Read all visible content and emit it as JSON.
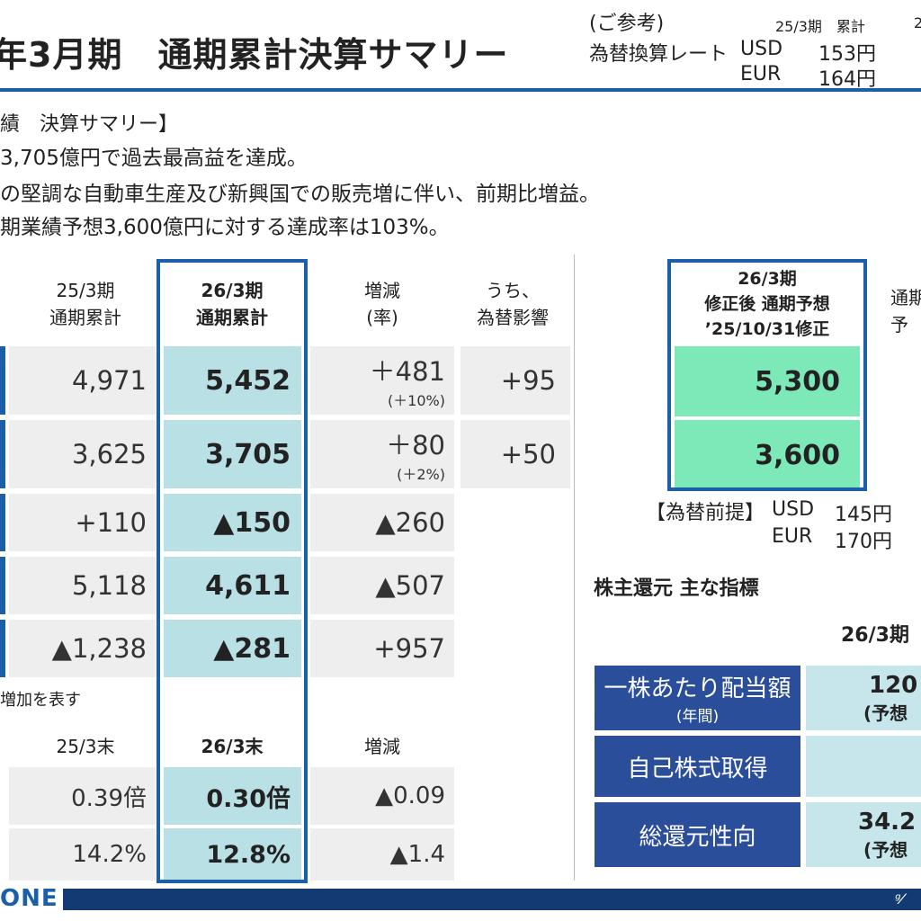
{
  "header": {
    "title": "年3月期　通期累計決算サマリー",
    "ref_label": "(ご参考)",
    "rate_label": "為替換算レート",
    "col_label": "25/3期　累計",
    "col_label_cut": "2",
    "usd": "USD",
    "usd_val": "153円",
    "eur": "EUR",
    "eur_val": "164円"
  },
  "highlights": {
    "heading": "績　決算サマリー】",
    "line1": "3,705億円で過去最高益を達成。",
    "line2": "の堅調な自動車生産及び新興国での販売増に伴い、前期比増益。",
    "line3": "期業績予想3,600億円に対する達成率は103%。"
  },
  "table": {
    "headers": {
      "prev": [
        "25/3期",
        "通期累計"
      ],
      "curr": [
        "26/3期",
        "通期累計"
      ],
      "diff": [
        "増減",
        "(率)"
      ],
      "fx": [
        "うち、",
        "為替影響"
      ]
    },
    "rows": [
      {
        "prev": "4,971",
        "curr": "5,452",
        "diff": "＋481",
        "rate": "(＋10%)",
        "fx": "+95"
      },
      {
        "prev": "3,625",
        "curr": "3,705",
        "diff": "＋80",
        "rate": "(＋2%)",
        "fx": "+50"
      },
      {
        "prev": "+110",
        "curr": "▲150",
        "diff": "▲260"
      },
      {
        "prev": "5,118",
        "curr": "4,611",
        "diff": "▲507"
      },
      {
        "prev": "▲1,238",
        "curr": "▲281",
        "diff": "+957"
      }
    ],
    "note": "増加を表す"
  },
  "balance": {
    "headers": {
      "prev": "25/3末",
      "curr": "26/3末",
      "diff": "増減"
    },
    "rows": [
      {
        "prev": "0.39倍",
        "curr": "0.30倍",
        "diff": "▲0.09"
      },
      {
        "prev": "14.2%",
        "curr": "12.8%",
        "diff": "▲1.4"
      }
    ]
  },
  "forecast": {
    "header": [
      "26/3期",
      "修正後 通期予想",
      "’25/10/31修正"
    ],
    "cut_header": [
      "通期",
      "予"
    ],
    "values": [
      "5,300",
      "3,600"
    ],
    "fx_label": "【為替前提】",
    "usd": "USD",
    "usd_val": "145円",
    "eur": "EUR",
    "eur_val": "170円"
  },
  "returns": {
    "heading": "株主還元 主な指標",
    "col_header": "26/3期",
    "rows": [
      {
        "label": "一株あたり配当額",
        "sub": "(年間)",
        "value": "120",
        "value_sub": "(予想"
      },
      {
        "label": "自己株式取得",
        "value": ""
      },
      {
        "label": "総還元性向",
        "value": "34.2",
        "value_sub": "(予想"
      }
    ]
  },
  "footer": {
    "brand": "ONE"
  },
  "colors": {
    "accent": "#1a5fa8",
    "highlight": "#b9e0e5",
    "forecast": "#7de8b8",
    "navy": "#2b4e9b"
  }
}
